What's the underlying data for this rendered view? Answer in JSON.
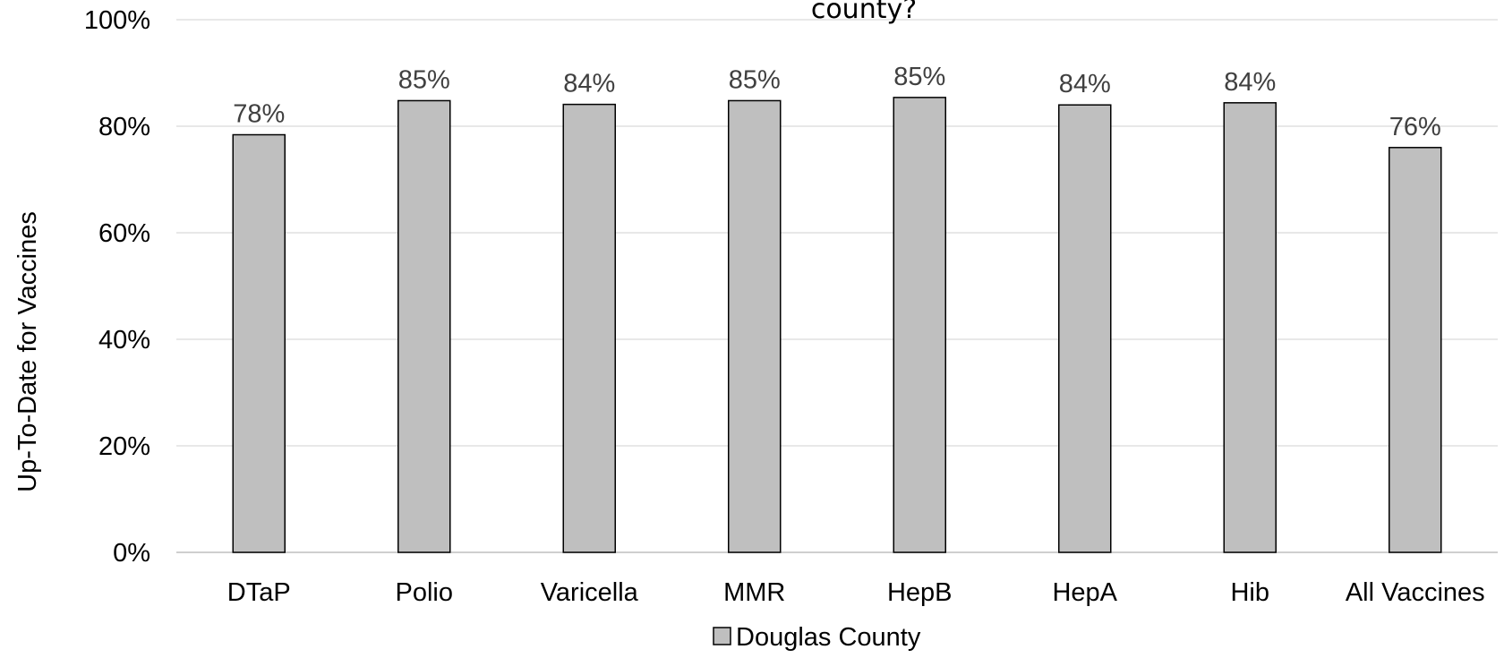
{
  "chart_data": {
    "type": "bar",
    "title": "county?",
    "xlabel": "",
    "ylabel": "Up-To-Date for Vaccines",
    "categories": [
      "DTaP",
      "Polio",
      "Varicella",
      "MMR",
      "HepB",
      "HepA",
      "Hib",
      "All Vaccines"
    ],
    "series": [
      {
        "name": "Douglas County",
        "values": [
          78.4,
          84.8,
          84.1,
          84.8,
          85.4,
          84.0,
          84.4,
          76.0
        ],
        "data_labels": [
          "78%",
          "85%",
          "84%",
          "85%",
          "85%",
          "84%",
          "84%",
          "76%"
        ],
        "color": "#bfbfbf",
        "stroke": "#000000"
      }
    ],
    "ylim": [
      0,
      100
    ],
    "yticks": [
      0,
      20,
      40,
      60,
      80,
      100
    ],
    "ytick_labels": [
      "0%",
      "20%",
      "40%",
      "60%",
      "80%",
      "100%"
    ],
    "grid": true,
    "gridline_color": "#d9d9d9",
    "legend_position": "bottom"
  }
}
